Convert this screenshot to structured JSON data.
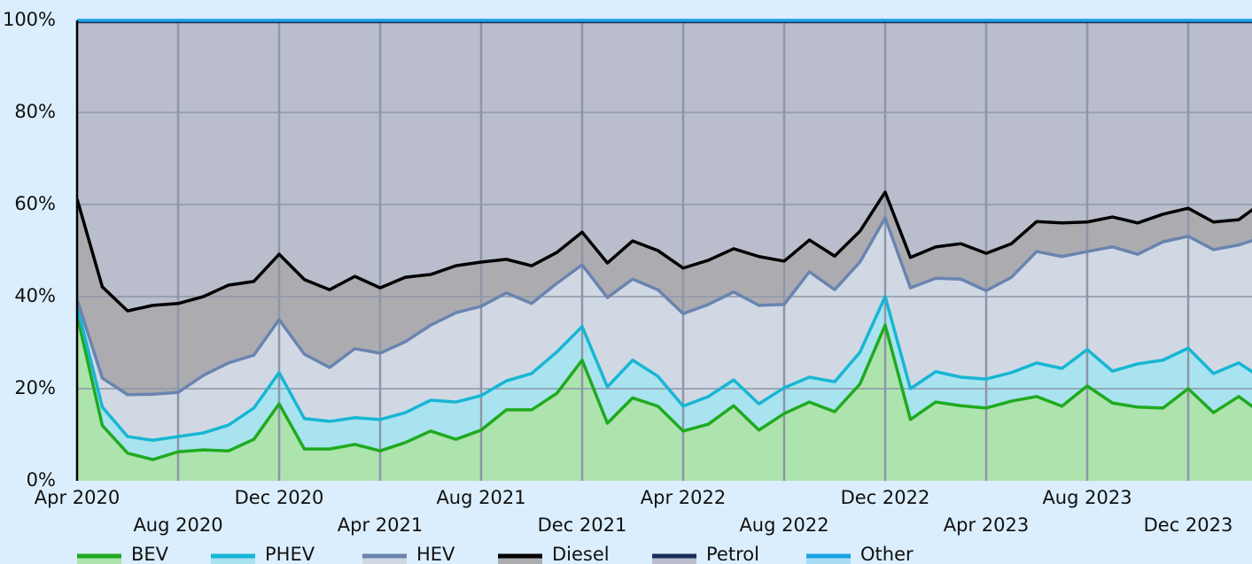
{
  "chart_data": {
    "type": "stacked_area",
    "categories": [
      "Apr 2020",
      null,
      null,
      null,
      "Aug 2020",
      null,
      null,
      null,
      "Dec 2020",
      null,
      null,
      null,
      "Apr 2021",
      null,
      null,
      null,
      "Aug 2021",
      null,
      null,
      null,
      "Dec 2021",
      null,
      null,
      null,
      "Apr 2022",
      null,
      null,
      null,
      "Aug 2022",
      null,
      null,
      null,
      "Dec 2022",
      null,
      null,
      null,
      "Apr 2023",
      null,
      null,
      null,
      "Aug 2023",
      null,
      null,
      null,
      "Dec 2023",
      null,
      null,
      null
    ],
    "series": [
      {
        "name": "BEV",
        "color": "#1faa1f",
        "fill": "#ade3ad",
        "values": [
          36,
          12,
          6,
          4.6,
          6.3,
          6.7,
          6.5,
          9,
          16.7,
          6.9,
          6.9,
          7.9,
          6.5,
          8.3,
          10.8,
          9,
          11,
          15.4,
          15.4,
          19,
          26.2,
          12.5,
          18,
          16.2,
          10.8,
          12.3,
          16.3,
          11,
          14.6,
          17.1,
          15,
          21,
          33.8,
          13.3,
          17.1,
          16.3,
          15.8,
          17.3,
          18.3,
          16.2,
          20.6,
          16.9,
          16,
          15.8,
          20,
          14.8,
          18.3,
          14.3
        ]
      },
      {
        "name": "PHEV",
        "color": "#17b6d3",
        "fill": "#a8e3ef",
        "values": [
          2,
          4,
          3.6,
          4.2,
          3.3,
          3.7,
          5.6,
          6.8,
          6.8,
          6.6,
          6,
          5.8,
          6.8,
          6.5,
          6.7,
          8.1,
          7.5,
          6.3,
          7.9,
          9,
          7.3,
          7.9,
          8.2,
          6.5,
          5.4,
          6,
          5.6,
          5.7,
          5.6,
          5.4,
          6.5,
          6.9,
          6.2,
          6.7,
          6.6,
          6.2,
          6.3,
          6.2,
          7.3,
          8.2,
          7.9,
          6.9,
          9.4,
          10.4,
          8.8,
          8.5,
          7.3,
          7.7
        ]
      },
      {
        "name": "HEV",
        "color": "#6a84b0",
        "fill": "#d0d8e4",
        "values": [
          1.4,
          6.3,
          9.1,
          10,
          9.6,
          12.5,
          13.5,
          11.5,
          11.5,
          14,
          11.7,
          15,
          14.4,
          15.4,
          16.3,
          19.4,
          19.4,
          19.1,
          15.2,
          14.9,
          13.4,
          19.4,
          17.6,
          18.8,
          20.1,
          20,
          19.1,
          21.4,
          18.1,
          22.9,
          20,
          19.6,
          17.1,
          21.9,
          20.3,
          21.3,
          19.2,
          20.7,
          24.2,
          24.3,
          21.3,
          27,
          23.8,
          25.7,
          24.3,
          26.9,
          25.6,
          31
        ]
      },
      {
        "name": "Diesel",
        "color": "#000000",
        "fill": "#acacb0",
        "values": [
          21.8,
          19.8,
          18.2,
          19.3,
          19.3,
          17.1,
          16.9,
          16,
          14.2,
          16.2,
          16.9,
          15.7,
          14.2,
          14,
          11,
          10.2,
          9.6,
          7.3,
          8.2,
          6.7,
          7.1,
          7.5,
          8.3,
          8.5,
          9.9,
          9.6,
          9.4,
          10.6,
          9.4,
          6.9,
          7.3,
          6.7,
          5.6,
          6.6,
          6.8,
          7.7,
          8.1,
          7.3,
          6.5,
          7.3,
          6.4,
          6.5,
          6.8,
          6,
          6.1,
          6,
          5.5,
          7.7
        ]
      },
      {
        "name": "Petrol",
        "color": "#1a2d5a",
        "fill": "#b9bdcc",
        "values": [
          38.5,
          57.6,
          62.8,
          61.6,
          61.2,
          59.7,
          57.2,
          56.4,
          50.5,
          56,
          58.2,
          55.3,
          57.8,
          55.5,
          54.9,
          53,
          52.2,
          51.6,
          53,
          50.1,
          45.7,
          52.4,
          47.6,
          49.7,
          53.5,
          51.8,
          49.3,
          51,
          52,
          47.4,
          50.9,
          45.5,
          37,
          51.2,
          48.9,
          48.2,
          50.3,
          48.2,
          43.4,
          43.7,
          43.5,
          42.4,
          43.7,
          41.8,
          40.5,
          43.5,
          43,
          39
        ]
      },
      {
        "name": "Other",
        "color": "#1aa3e3",
        "fill": "#a8dcf5",
        "values": [
          0.3,
          0.3,
          0.3,
          0.3,
          0.3,
          0.3,
          0.3,
          0.3,
          0.3,
          0.3,
          0.3,
          0.3,
          0.3,
          0.3,
          0.3,
          0.3,
          0.3,
          0.3,
          0.3,
          0.3,
          0.3,
          0.3,
          0.3,
          0.3,
          0.3,
          0.3,
          0.3,
          0.3,
          0.3,
          0.3,
          0.3,
          0.3,
          0.3,
          0.3,
          0.3,
          0.3,
          0.3,
          0.3,
          0.3,
          0.3,
          0.3,
          0.3,
          0.3,
          0.3,
          0.3,
          0.3,
          0.3,
          0.3
        ]
      }
    ],
    "ylim": [
      0,
      100
    ],
    "yticks": [
      {
        "value": 0,
        "label": "0%"
      },
      {
        "value": 20,
        "label": "20%"
      },
      {
        "value": 40,
        "label": "40%"
      },
      {
        "value": 60,
        "label": "60%"
      },
      {
        "value": 80,
        "label": "80%"
      },
      {
        "value": 100,
        "label": "100%"
      }
    ],
    "grid": true,
    "legend": "bottom"
  }
}
